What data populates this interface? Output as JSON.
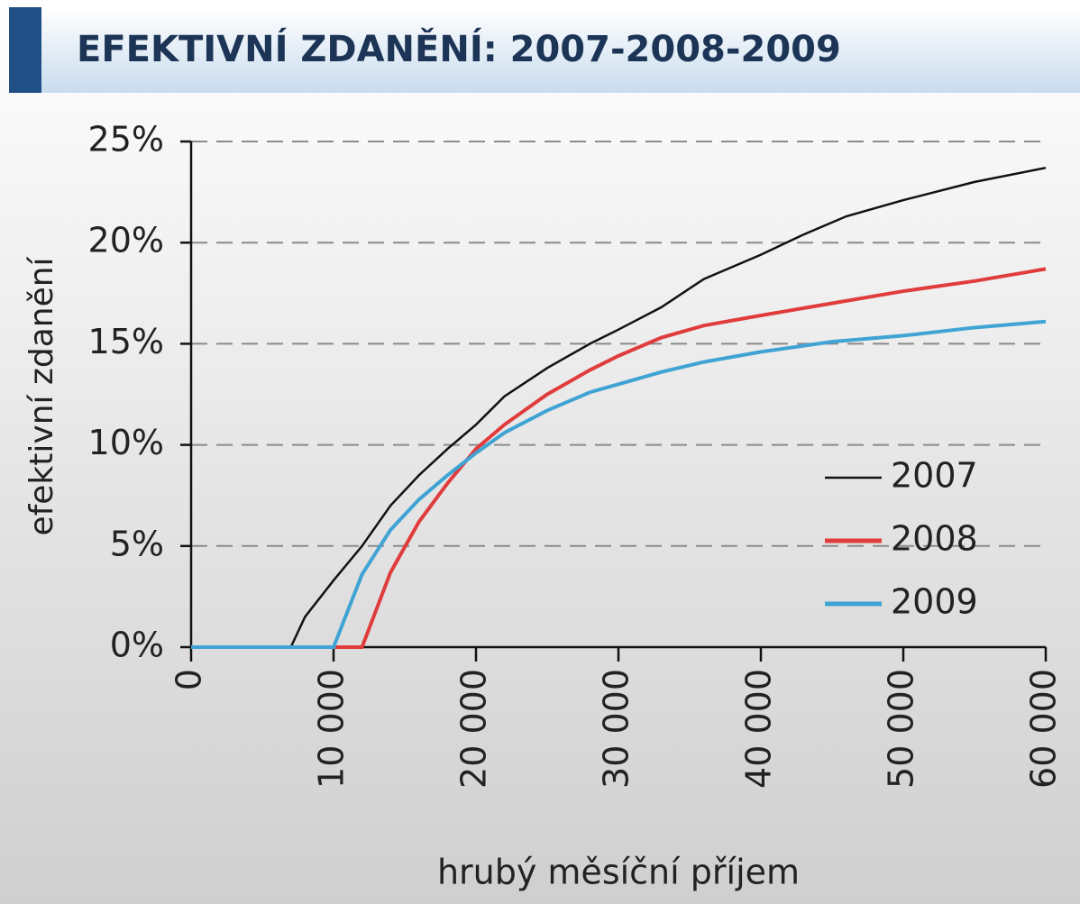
{
  "chart_data": {
    "type": "line",
    "title": "EFEKTIVNÍ ZDANĚNÍ: 2007-2008-2009",
    "x_label": "hrubý měsíční příjem",
    "y_label": "efektivní zdanění",
    "xlim": [
      0,
      60000
    ],
    "ylim": [
      0,
      25
    ],
    "xticks": [
      0,
      {
        "value": 10000,
        "label": "10 000"
      },
      {
        "value": 20000,
        "label": "20 000"
      },
      {
        "value": 30000,
        "label": "30 000"
      },
      {
        "value": 40000,
        "label": "40 000"
      },
      {
        "value": 50000,
        "label": "50 000"
      },
      {
        "value": 60000,
        "label": "60 000"
      }
    ],
    "yticks": [
      {
        "value": 0,
        "label": "0%"
      },
      {
        "value": 5,
        "label": "5%"
      },
      {
        "value": 10,
        "label": "10%"
      },
      {
        "value": 15,
        "label": "15%"
      },
      {
        "value": 20,
        "label": "20%"
      },
      {
        "value": 25,
        "label": "25%"
      }
    ],
    "grid": true,
    "legend": "right",
    "series": [
      {
        "name": "2007",
        "color": "#111111",
        "x": [
          0,
          7000,
          8000,
          10000,
          12000,
          14000,
          16000,
          18000,
          20000,
          22000,
          25000,
          28000,
          30000,
          33000,
          36000,
          40000,
          43000,
          46000,
          50000,
          55000,
          60000
        ],
        "values": [
          0,
          0,
          1.5,
          3.3,
          5.0,
          7.0,
          8.5,
          9.8,
          11.0,
          12.4,
          13.8,
          15.0,
          15.7,
          16.8,
          18.2,
          19.4,
          20.4,
          21.3,
          22.1,
          23.0,
          23.7
        ]
      },
      {
        "name": "2008",
        "color": "#e03c3c",
        "x": [
          0,
          12000,
          14000,
          16000,
          18000,
          20000,
          22000,
          25000,
          28000,
          30000,
          33000,
          36000,
          40000,
          45000,
          50000,
          55000,
          60000
        ],
        "values": [
          0,
          0,
          3.7,
          6.2,
          8.1,
          9.8,
          11.0,
          12.5,
          13.7,
          14.4,
          15.3,
          15.9,
          16.4,
          17.0,
          17.6,
          18.1,
          18.7
        ]
      },
      {
        "name": "2009",
        "color": "#3fa3d4",
        "x": [
          0,
          10000,
          12000,
          14000,
          16000,
          18000,
          20000,
          22000,
          25000,
          28000,
          30000,
          33000,
          36000,
          40000,
          45000,
          50000,
          55000,
          60000
        ],
        "values": [
          0,
          0,
          3.6,
          5.8,
          7.3,
          8.5,
          9.6,
          10.6,
          11.7,
          12.6,
          13.0,
          13.6,
          14.1,
          14.6,
          15.1,
          15.4,
          15.8,
          16.1
        ]
      }
    ]
  }
}
